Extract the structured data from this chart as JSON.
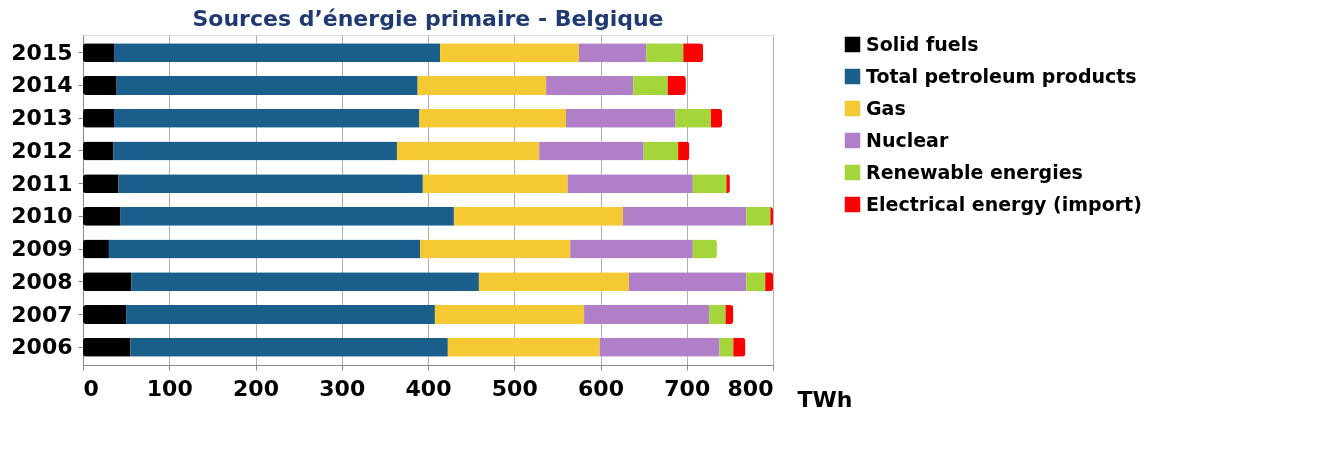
{
  "chart_data": {
    "type": "bar",
    "orientation": "horizontal",
    "stacked": true,
    "title": "Sources d’énergie primaire - Belgique",
    "xlabel": "TWh",
    "categories": [
      "2015",
      "2014",
      "2013",
      "2012",
      "2011",
      "2010",
      "2009",
      "2008",
      "2007",
      "2006"
    ],
    "series": [
      {
        "name": "Solid fuels",
        "color": "#000000",
        "values": [
          36,
          39,
          36,
          35,
          41,
          43,
          30,
          56,
          50,
          55
        ]
      },
      {
        "name": "Total petroleum products",
        "color": "#1a5e8c",
        "values": [
          378,
          349,
          354,
          329,
          353,
          387,
          361,
          403,
          358,
          368
        ]
      },
      {
        "name": "Gas",
        "color": "#f5c933",
        "values": [
          161,
          149,
          170,
          165,
          168,
          196,
          174,
          174,
          173,
          176
        ]
      },
      {
        "name": "Nuclear",
        "color": "#b07fc8",
        "values": [
          78,
          101,
          127,
          121,
          145,
          143,
          142,
          136,
          145,
          139
        ]
      },
      {
        "name": "Renewable energies",
        "color": "#a4d53a",
        "values": [
          43,
          40,
          41,
          40,
          39,
          28,
          28,
          22,
          19,
          16
        ]
      },
      {
        "name": "Electrical energy (import)",
        "color": "#ff0000",
        "values": [
          23,
          21,
          13,
          13,
          4,
          3,
          0,
          9,
          9,
          14
        ]
      }
    ],
    "xlim": [
      0,
      800
    ],
    "xticks": [
      0,
      100,
      200,
      300,
      400,
      500,
      600,
      700,
      800
    ],
    "grid": "x",
    "legend": "right"
  }
}
